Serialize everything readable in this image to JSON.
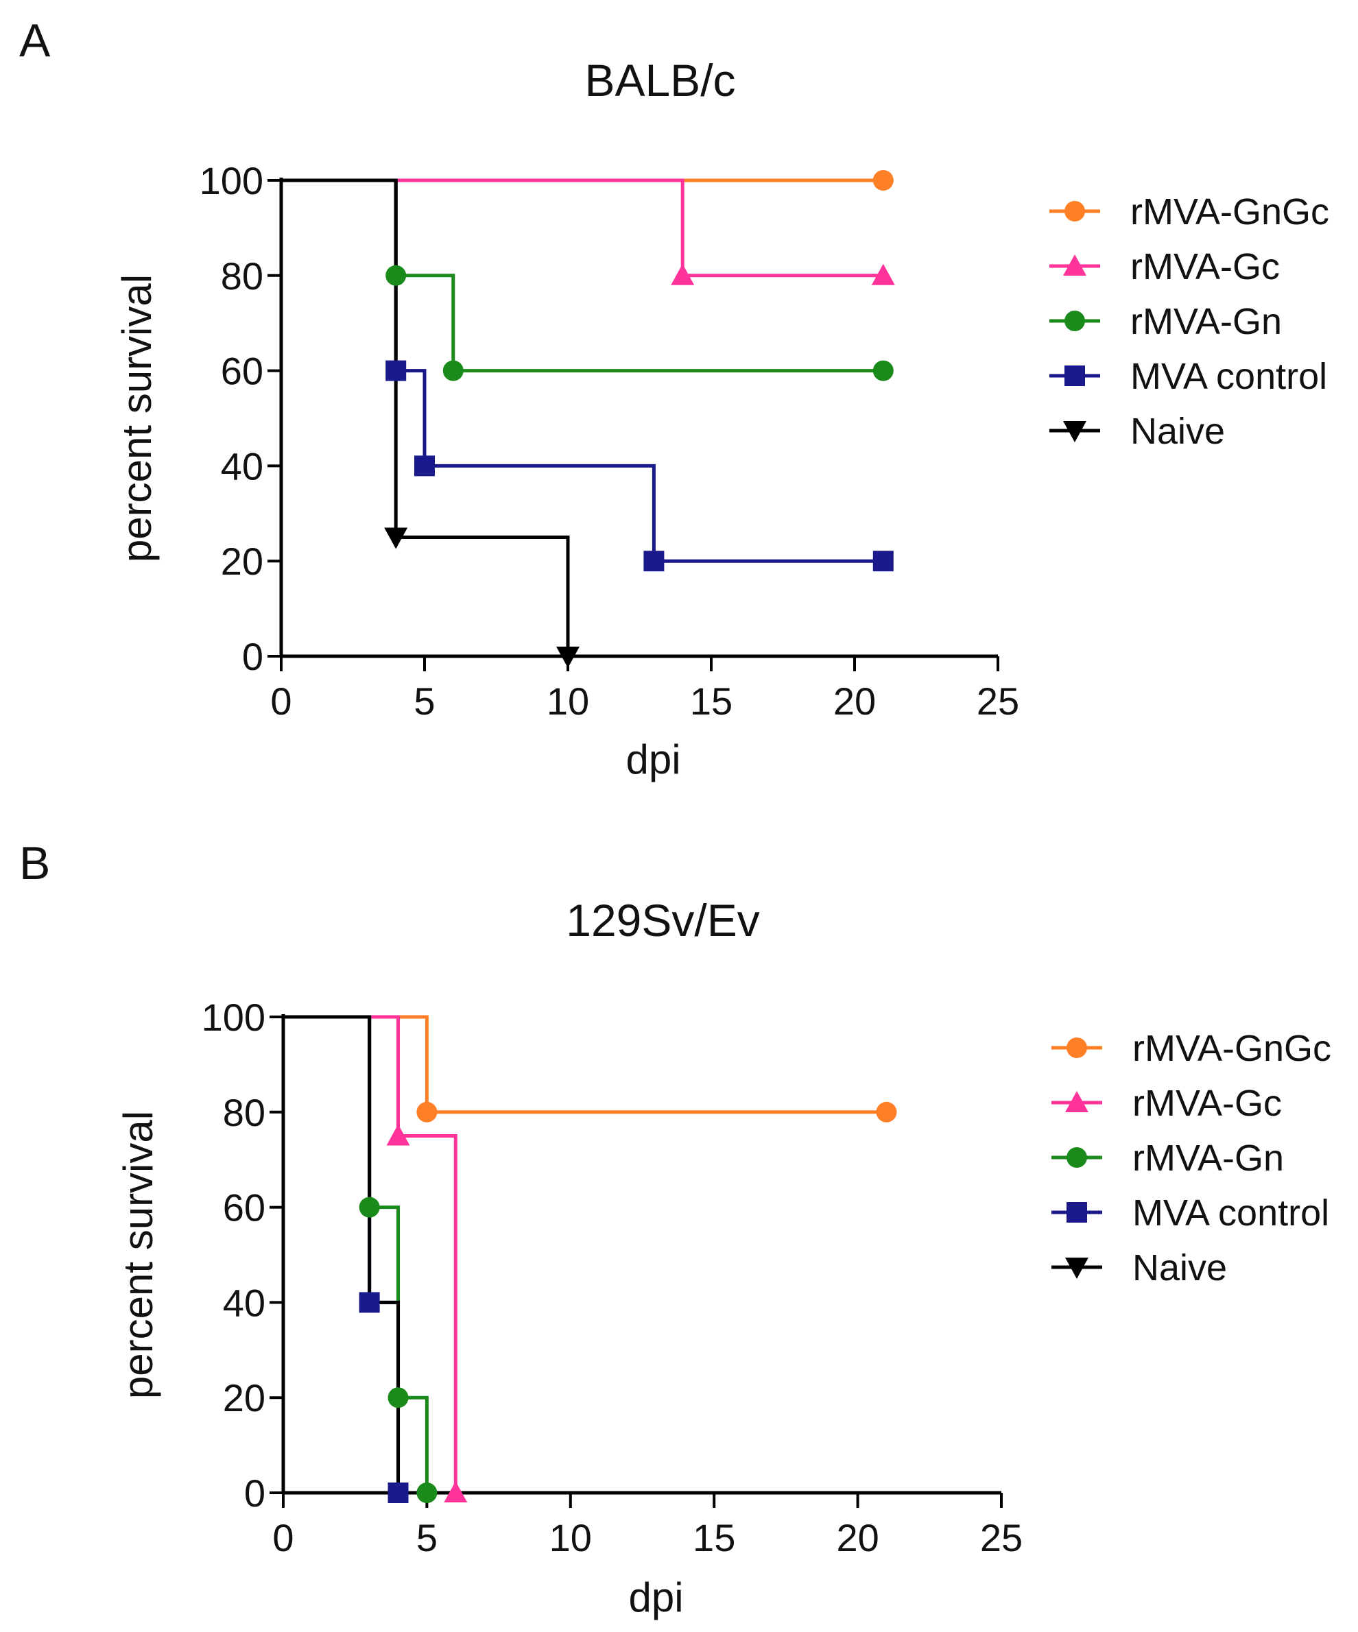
{
  "panel_labels": [
    "A",
    "B"
  ],
  "chart_data": [
    {
      "type": "line",
      "step": true,
      "panel": "A",
      "title": "BALB/c",
      "xlabel": "dpi",
      "ylabel": "percent survival",
      "xlim": [
        0,
        25
      ],
      "ylim": [
        0,
        100
      ],
      "xticks": [
        0,
        5,
        10,
        15,
        20,
        25
      ],
      "yticks": [
        0,
        20,
        40,
        60,
        80,
        100
      ],
      "legend_position": "right",
      "series": [
        {
          "name": "rMVA-GnGc",
          "color": "#FF7F27",
          "marker": "circle",
          "path": [
            [
              0,
              100
            ],
            [
              21,
              100
            ]
          ],
          "markers": [
            [
              21,
              100
            ]
          ]
        },
        {
          "name": "rMVA-Gc",
          "color": "#FF3399",
          "marker": "triangle-up",
          "path": [
            [
              0,
              100
            ],
            [
              14,
              100
            ],
            [
              14,
              80
            ],
            [
              21,
              80
            ]
          ],
          "markers": [
            [
              14,
              80
            ],
            [
              21,
              80
            ]
          ]
        },
        {
          "name": "rMVA-Gn",
          "color": "#1A8A1A",
          "marker": "circle",
          "path": [
            [
              0,
              100
            ],
            [
              4,
              100
            ],
            [
              4,
              80
            ],
            [
              6,
              80
            ],
            [
              6,
              60
            ],
            [
              21,
              60
            ]
          ],
          "markers": [
            [
              4,
              80
            ],
            [
              6,
              60
            ],
            [
              21,
              60
            ]
          ]
        },
        {
          "name": "MVA control",
          "color": "#1A1A8C",
          "marker": "square",
          "path": [
            [
              0,
              100
            ],
            [
              4,
              100
            ],
            [
              4,
              60
            ],
            [
              5,
              60
            ],
            [
              5,
              40
            ],
            [
              13,
              40
            ],
            [
              13,
              20
            ],
            [
              21,
              20
            ]
          ],
          "markers": [
            [
              4,
              60
            ],
            [
              5,
              40
            ],
            [
              13,
              20
            ],
            [
              21,
              20
            ]
          ]
        },
        {
          "name": "Naive",
          "color": "#000000",
          "marker": "triangle-down",
          "path": [
            [
              0,
              100
            ],
            [
              4,
              100
            ],
            [
              4,
              25
            ],
            [
              10,
              25
            ],
            [
              10,
              0
            ]
          ],
          "markers": [
            [
              4,
              25
            ],
            [
              10,
              0
            ]
          ]
        }
      ]
    },
    {
      "type": "line",
      "step": true,
      "panel": "B",
      "title": "129Sv/Ev",
      "xlabel": "dpi",
      "ylabel": "percent survival",
      "xlim": [
        0,
        25
      ],
      "ylim": [
        0,
        100
      ],
      "xticks": [
        0,
        5,
        10,
        15,
        20,
        25
      ],
      "yticks": [
        0,
        20,
        40,
        60,
        80,
        100
      ],
      "legend_position": "right",
      "series": [
        {
          "name": "rMVA-GnGc",
          "color": "#FF7F27",
          "marker": "circle",
          "path": [
            [
              0,
              100
            ],
            [
              5,
              100
            ],
            [
              5,
              80
            ],
            [
              21,
              80
            ]
          ],
          "markers": [
            [
              5,
              80
            ],
            [
              21,
              80
            ]
          ]
        },
        {
          "name": "rMVA-Gc",
          "color": "#FF3399",
          "marker": "triangle-up",
          "path": [
            [
              0,
              100
            ],
            [
              4,
              100
            ],
            [
              4,
              75
            ],
            [
              6,
              75
            ],
            [
              6,
              0
            ]
          ],
          "markers": [
            [
              4,
              75
            ],
            [
              6,
              0
            ]
          ]
        },
        {
          "name": "rMVA-Gn",
          "color": "#1A8A1A",
          "marker": "circle",
          "path": [
            [
              0,
              100
            ],
            [
              3,
              100
            ],
            [
              3,
              60
            ],
            [
              4,
              60
            ],
            [
              4,
              20
            ],
            [
              5,
              20
            ],
            [
              5,
              0
            ]
          ],
          "markers": [
            [
              3,
              60
            ],
            [
              4,
              20
            ],
            [
              5,
              0
            ]
          ]
        },
        {
          "name": "MVA control",
          "color": "#1A1A8C",
          "marker": "square",
          "path": [
            [
              0,
              100
            ],
            [
              3,
              100
            ],
            [
              3,
              40
            ],
            [
              4,
              40
            ],
            [
              4,
              0
            ]
          ],
          "markers": [
            [
              3,
              40
            ],
            [
              4,
              0
            ]
          ]
        },
        {
          "name": "Naive",
          "color": "#000000",
          "marker": "triangle-down",
          "path": [
            [
              0,
              100
            ],
            [
              3,
              100
            ],
            [
              3,
              40
            ],
            [
              4,
              40
            ],
            [
              4,
              0
            ]
          ],
          "markers": []
        }
      ]
    }
  ]
}
